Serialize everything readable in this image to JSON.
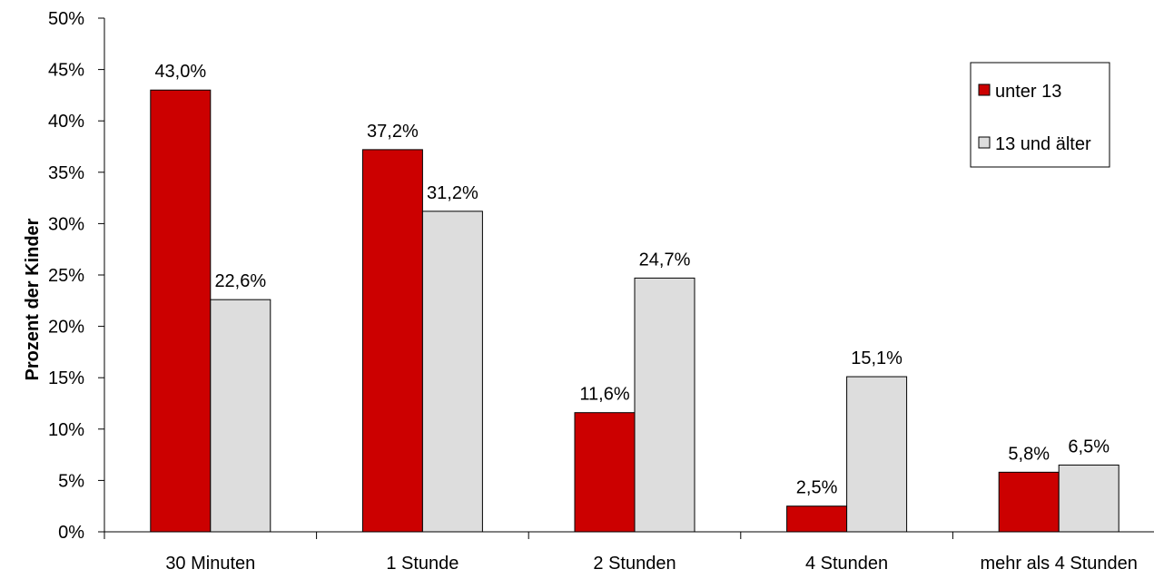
{
  "chart_data": {
    "type": "bar",
    "title": "",
    "xlabel": "",
    "ylabel": "Prozent der Kinder",
    "ylim": [
      0,
      50
    ],
    "y_ticks": [
      0,
      5,
      10,
      15,
      20,
      25,
      30,
      35,
      40,
      45,
      50
    ],
    "y_tick_labels": [
      "0%",
      "5%",
      "10%",
      "15%",
      "20%",
      "25%",
      "30%",
      "35%",
      "40%",
      "45%",
      "50%"
    ],
    "grid": false,
    "legend_position": "top-right",
    "categories": [
      "30 Minuten",
      "1 Stunde",
      "2 Stunden",
      "4 Stunden",
      "mehr als 4 Stunden"
    ],
    "series": [
      {
        "name": "unter 13",
        "color": "#cc0000",
        "values": [
          43.0,
          37.2,
          11.6,
          2.5,
          5.8
        ],
        "labels": [
          "43,0%",
          "37,2%",
          "11,6%",
          "2,5%",
          "5,8%"
        ]
      },
      {
        "name": "13 und älter",
        "color": "#dddddd",
        "values": [
          22.6,
          31.2,
          24.7,
          15.1,
          6.5
        ],
        "labels": [
          "22,6%",
          "31,2%",
          "24,7%",
          "15,1%",
          "6,5%"
        ]
      }
    ]
  }
}
